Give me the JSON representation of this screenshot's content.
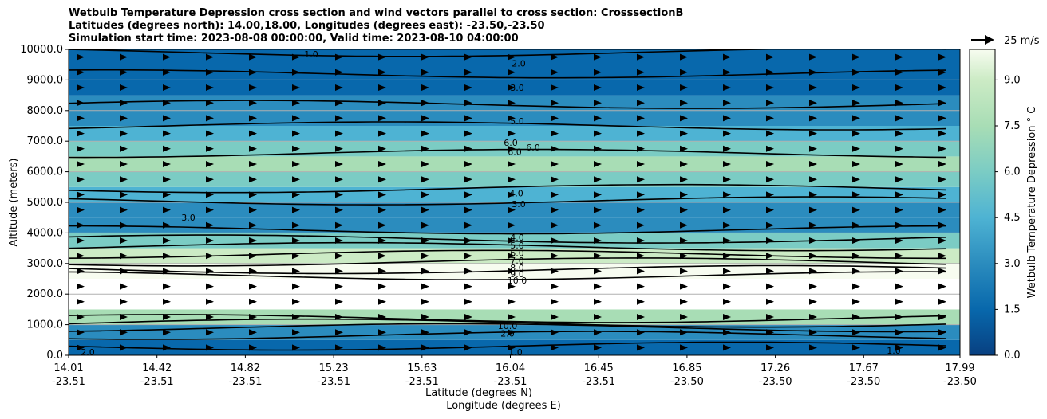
{
  "chart_data": {
    "type": "contour",
    "title": [
      "Wetbulb Temperature Depression cross section and wind vectors parallel to cross section: CrosssectionB",
      "Latitudes (degrees north): 14.00,18.00, Longitudes (degrees east): -23.50,-23.50",
      "Simulation start time: 2023-08-08 00:00:00, Valid time: 2023-08-10 04:00:00"
    ],
    "ylabel": "Altitude (meters)",
    "xlabel_lines": [
      "Latitude (degrees N)",
      "Longitude (degrees E)"
    ],
    "ylim": [
      0,
      10000
    ],
    "y_ticks": [
      "0.0",
      "1000.0",
      "2000.0",
      "3000.0",
      "4000.0",
      "5000.0",
      "6000.0",
      "7000.0",
      "8000.0",
      "9000.0",
      "10000.0"
    ],
    "x_ticks": [
      {
        "lat": "14.01",
        "lon": "-23.51"
      },
      {
        "lat": "14.42",
        "lon": "-23.51"
      },
      {
        "lat": "14.82",
        "lon": "-23.51"
      },
      {
        "lat": "15.23",
        "lon": "-23.51"
      },
      {
        "lat": "15.63",
        "lon": "-23.51"
      },
      {
        "lat": "16.04",
        "lon": "-23.51"
      },
      {
        "lat": "16.45",
        "lon": "-23.51"
      },
      {
        "lat": "16.85",
        "lon": "-23.50"
      },
      {
        "lat": "17.26",
        "lon": "-23.50"
      },
      {
        "lat": "17.67",
        "lon": "-23.50"
      },
      {
        "lat": "17.99",
        "lon": "-23.50"
      }
    ],
    "colorbar": {
      "label": "Wetbulb Temperature Depression ° C",
      "range": [
        0,
        10
      ],
      "ticks": [
        "0.0",
        "1.5",
        "3.0",
        "4.5",
        "6.0",
        "7.5",
        "9.0"
      ]
    },
    "quiver_key": "25 m/s",
    "grid": "horizontal",
    "contour_labels": [
      "1.0",
      "2.0",
      "3.0",
      "5.0",
      "6.0",
      "6.0",
      "6.0",
      "4.0",
      "3.0",
      "3.0",
      "4.0",
      "5.0",
      "6.0",
      "7.0",
      "8.0",
      "9.0",
      "10.0",
      "10.0",
      "2.0",
      "1.0",
      "2.0",
      "1.0"
    ],
    "profile": {
      "altitude": [
        0,
        500,
        1000,
        1500,
        2000,
        2500,
        3000,
        3500,
        4000,
        4500,
        5000,
        5500,
        6000,
        6500,
        7000,
        7500,
        8000,
        8500,
        9000,
        9500,
        10000
      ],
      "depression": [
        1.0,
        2.0,
        3.5,
        10.0,
        10.0,
        10.0,
        9.0,
        6.0,
        4.0,
        3.0,
        3.5,
        5.0,
        6.0,
        6.5,
        5.5,
        4.0,
        3.0,
        2.5,
        2.0,
        1.5,
        1.0
      ]
    }
  }
}
